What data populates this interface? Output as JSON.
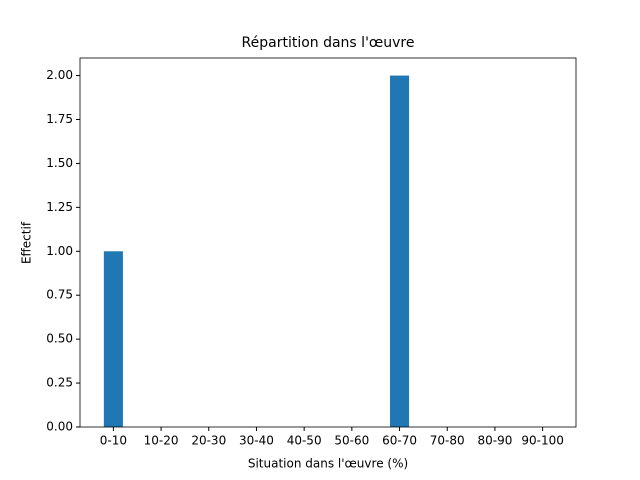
{
  "chart_data": {
    "type": "bar",
    "title": "Répartition dans l'œuvre",
    "x_label": "Situation dans l'œuvre (%)",
    "y_label": "Effectif",
    "categories": [
      "0-10",
      "10-20",
      "20-30",
      "30-40",
      "40-50",
      "50-60",
      "60-70",
      "70-80",
      "80-90",
      "90-100"
    ],
    "values": [
      1,
      0,
      0,
      0,
      0,
      0,
      2,
      0,
      0,
      0
    ],
    "color": "#1f77b4",
    "ylim": [
      0,
      2.1
    ],
    "yticks": [
      {
        "value": 0,
        "label": "0.00"
      },
      {
        "value": 0.25,
        "label": "0.25"
      },
      {
        "value": 0.5,
        "label": "0.50"
      },
      {
        "value": 0.75,
        "label": "0.75"
      },
      {
        "value": 1,
        "label": "1.00"
      },
      {
        "value": 1.25,
        "label": "1.25"
      },
      {
        "value": 1.5,
        "label": "1.50"
      },
      {
        "value": 1.75,
        "label": "1.75"
      },
      {
        "value": 2,
        "label": "2.00"
      }
    ],
    "grid": false
  }
}
